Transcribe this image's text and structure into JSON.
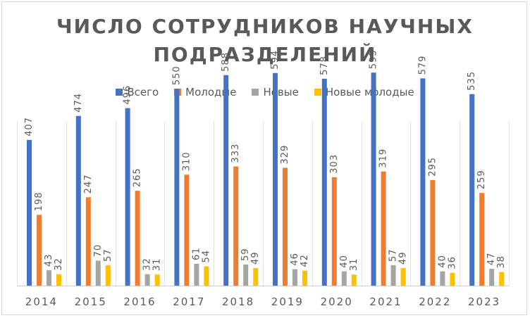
{
  "chart_data": {
    "type": "bar",
    "title": "ЧИСЛО СОТРУДНИКОВ НАУЧНЫХ ПОДРАЗДЕЛЕНИЙ",
    "title_lines": [
      "ЧИСЛО СОТРУДНИКОВ НАУЧНЫХ",
      "ПОДРАЗДЕЛЕНИЙ"
    ],
    "categories": [
      "2014",
      "2015",
      "2016",
      "2017",
      "2018",
      "2019",
      "2020",
      "2021",
      "2022",
      "2023"
    ],
    "series": [
      {
        "name": "Всего",
        "color": "#4472c4",
        "values": [
          407,
          474,
          496,
          550,
          588,
          594,
          578,
          595,
          579,
          535
        ]
      },
      {
        "name": "Молодые",
        "color": "#ed7d31",
        "values": [
          198,
          247,
          265,
          310,
          333,
          329,
          303,
          319,
          295,
          259
        ]
      },
      {
        "name": "Новые",
        "color": "#a5a5a5",
        "values": [
          43,
          70,
          32,
          61,
          59,
          46,
          40,
          57,
          40,
          47
        ]
      },
      {
        "name": "Новые молодые",
        "color": "#ffc000",
        "values": [
          32,
          57,
          31,
          54,
          49,
          42,
          31,
          49,
          36,
          38
        ]
      }
    ],
    "ylim": [
      0,
      680
    ],
    "grid": "vertical",
    "legend_position": "top",
    "data_labels": true
  }
}
